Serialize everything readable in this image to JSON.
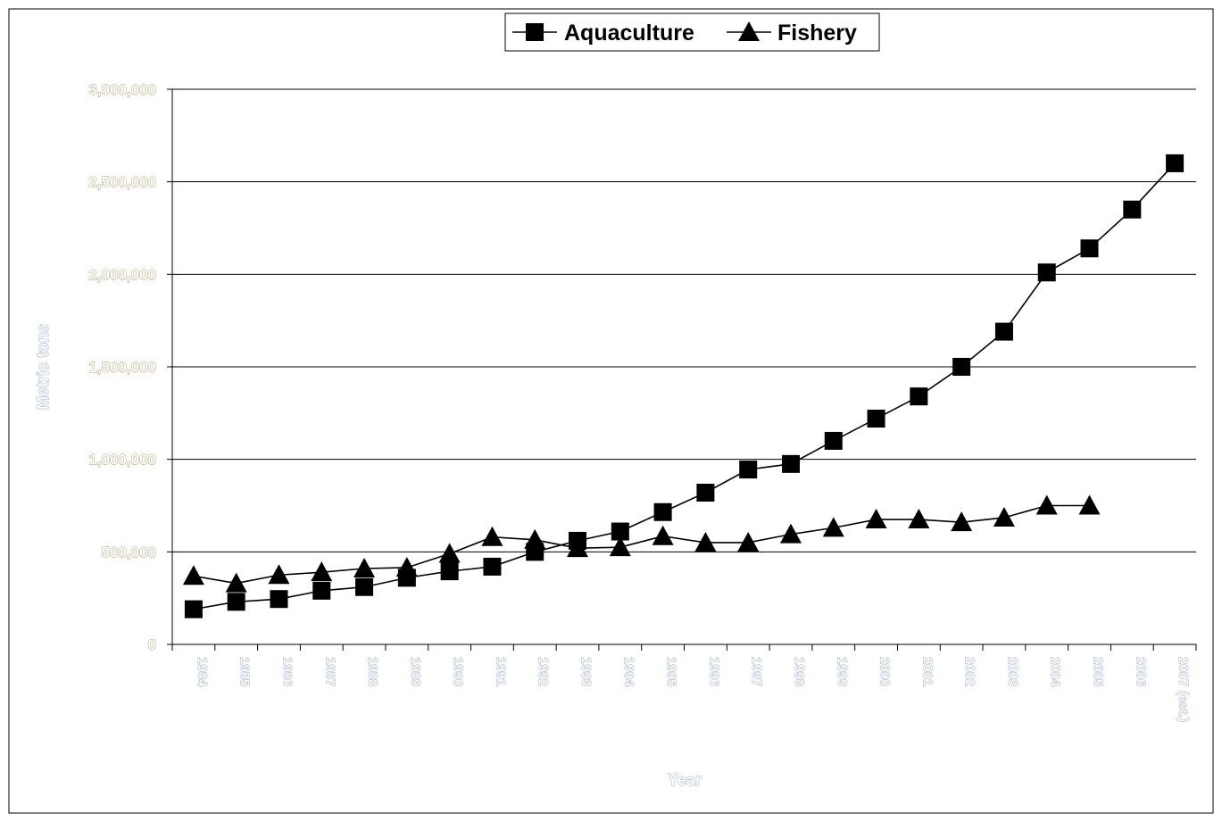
{
  "chart_data": {
    "type": "line",
    "title": "",
    "xlabel": "Year",
    "ylabel": "Metric tons",
    "ylim": [
      0,
      3000000
    ],
    "yticks": [
      0,
      500000,
      1000000,
      1500000,
      2000000,
      2500000,
      3000000
    ],
    "ytick_labels": [
      "0",
      "500,000",
      "1,000,000",
      "1,500,000",
      "2,000,000",
      "2,500,000",
      "3,000,000"
    ],
    "grid": "horizontal",
    "legend_position": "top",
    "categories": [
      "1984",
      "1985",
      "1986",
      "1987",
      "1988",
      "1989",
      "1990",
      "1991",
      "1992",
      "1993",
      "1994",
      "1995",
      "1996",
      "1997",
      "1998",
      "1999",
      "2000",
      "2001",
      "2002",
      "2003",
      "2004",
      "2005",
      "2006",
      "2007 (est.)"
    ],
    "series": [
      {
        "name": "Aquaculture",
        "marker": "square",
        "color": "#000000",
        "values": [
          190000,
          230000,
          245000,
          290000,
          310000,
          360000,
          395000,
          420000,
          500000,
          560000,
          610000,
          715000,
          820000,
          945000,
          975000,
          1100000,
          1220000,
          1340000,
          1500000,
          1690000,
          2010000,
          2140000,
          2350000,
          2600000
        ]
      },
      {
        "name": "Fishery",
        "marker": "triangle",
        "color": "#000000",
        "values": [
          370000,
          330000,
          375000,
          390000,
          410000,
          415000,
          490000,
          580000,
          565000,
          520000,
          525000,
          585000,
          550000,
          550000,
          595000,
          630000,
          675000,
          675000,
          660000,
          685000,
          750000,
          750000,
          null,
          null
        ]
      }
    ]
  }
}
